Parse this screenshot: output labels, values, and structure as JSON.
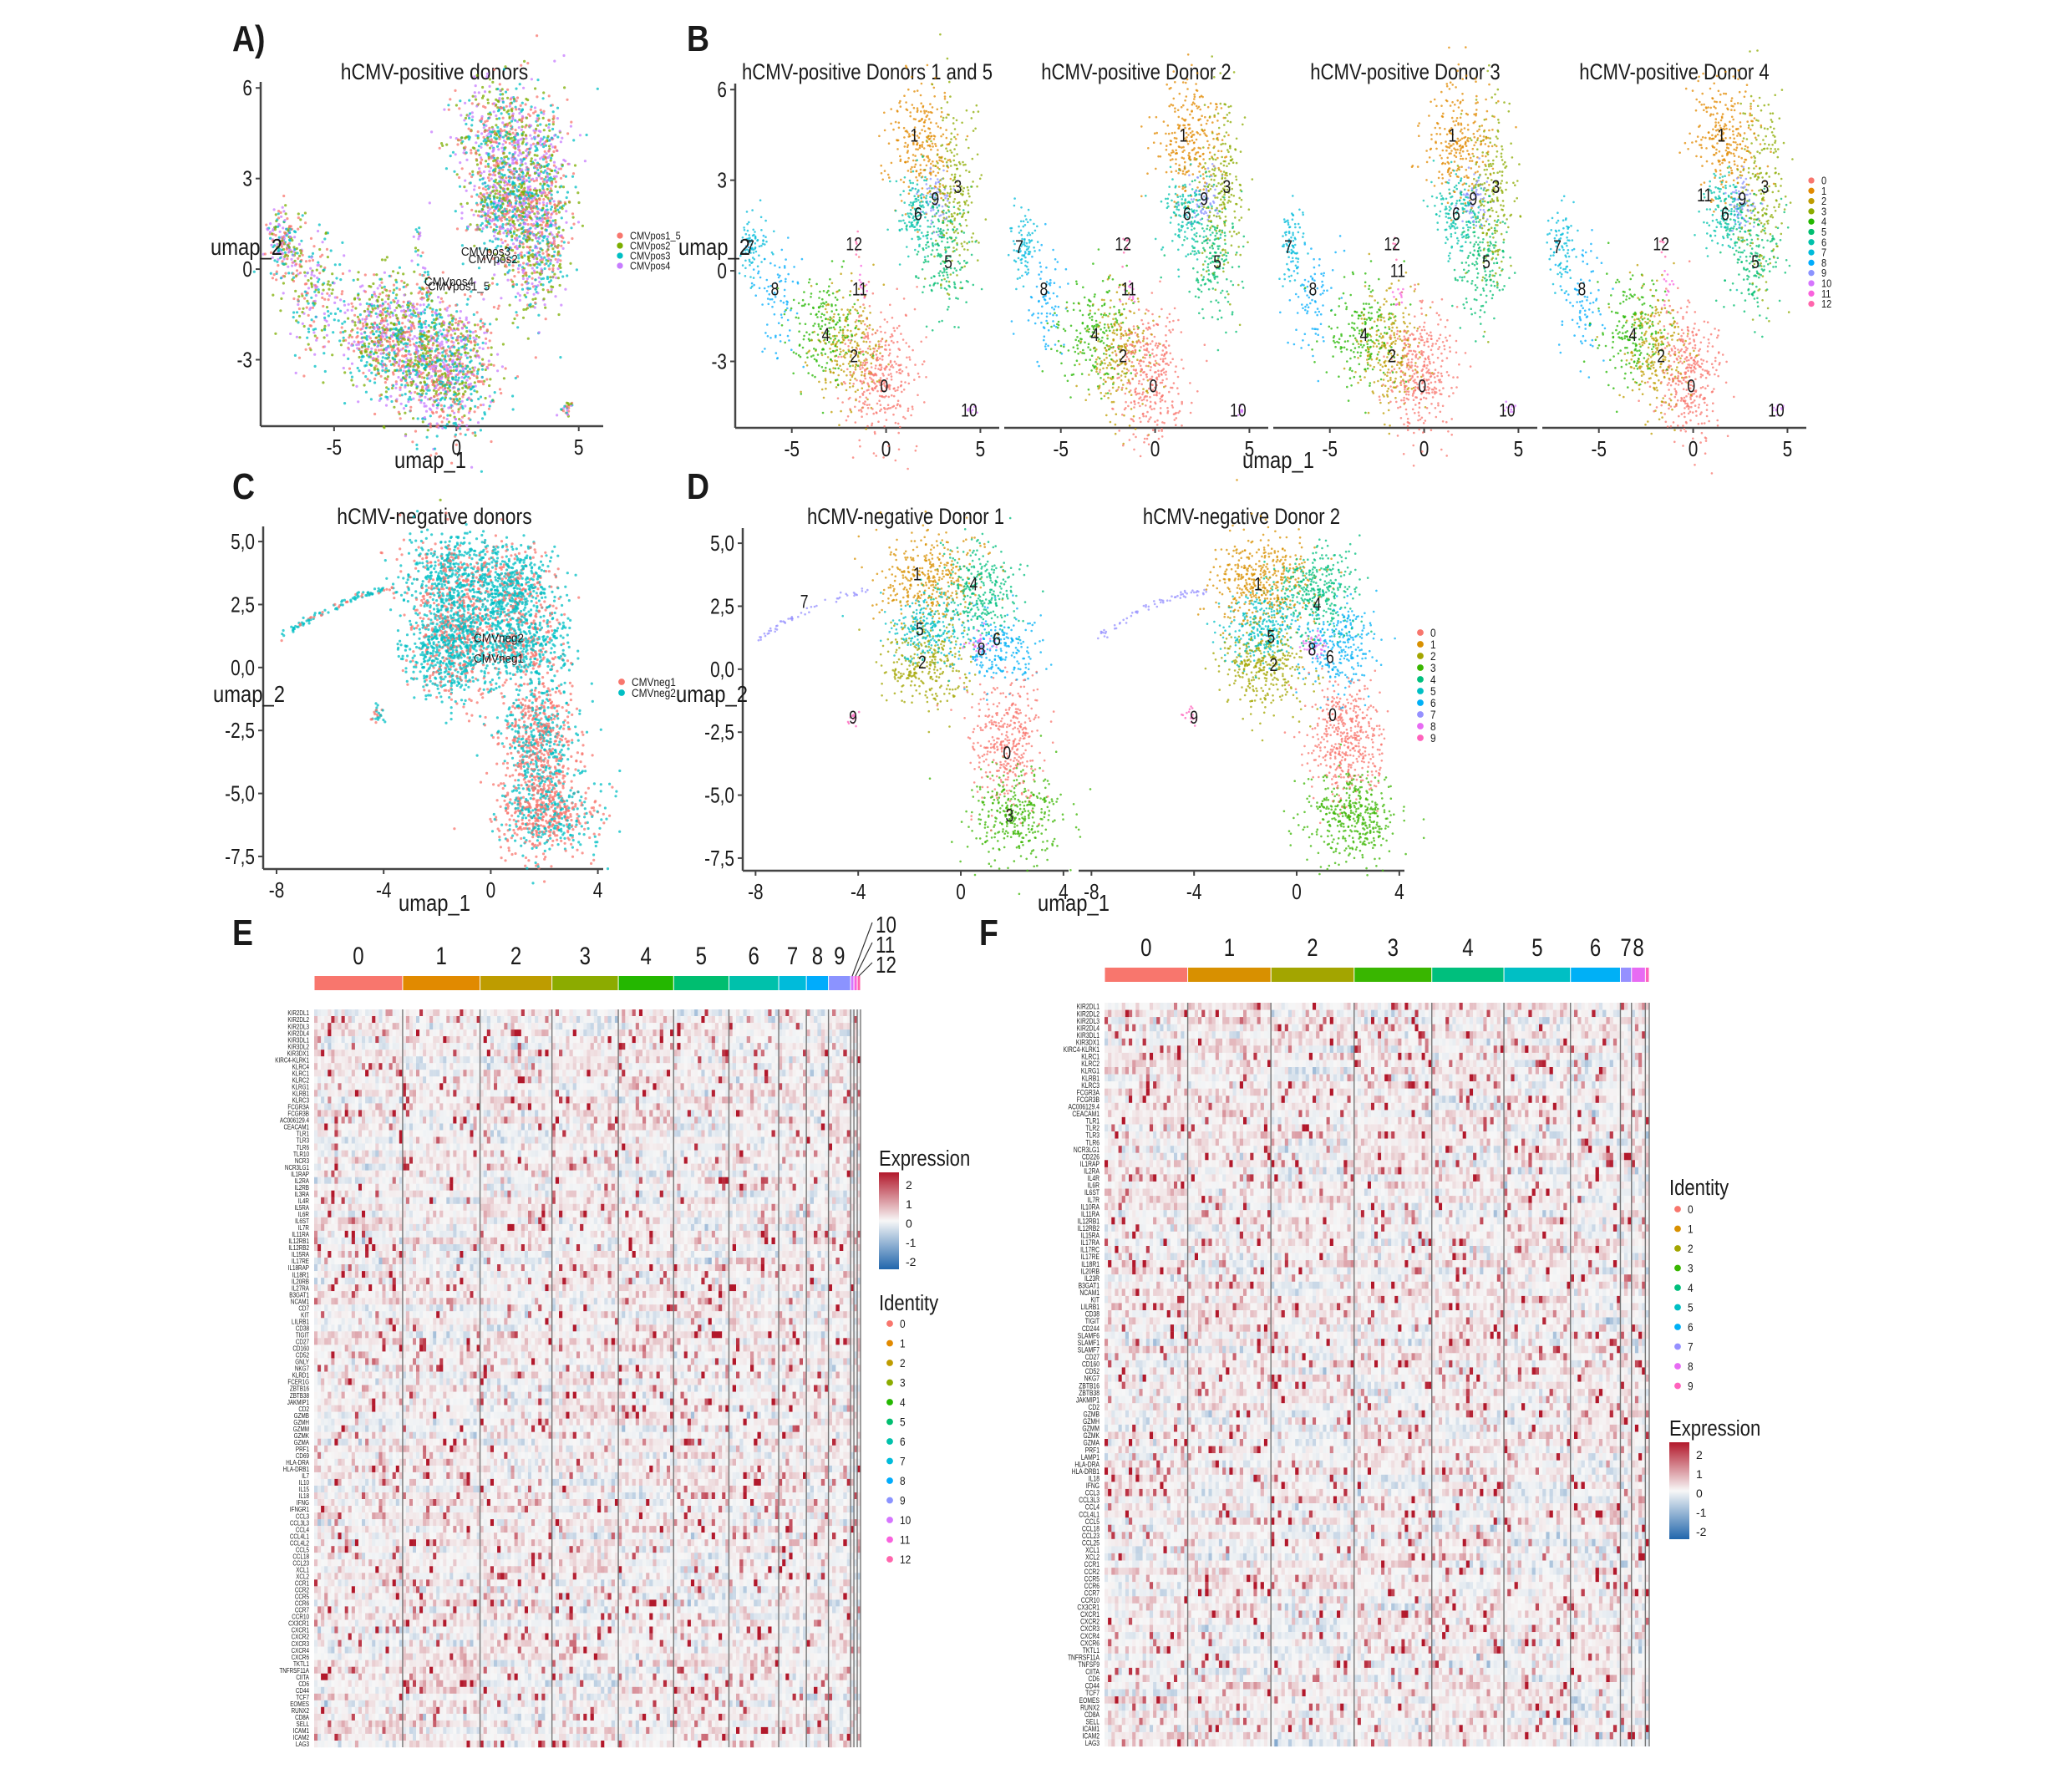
{
  "figure": {
    "panel_letters": [
      "A)",
      "B",
      "C",
      "D",
      "E",
      "F"
    ]
  },
  "palettes": {
    "clusters13": [
      "#F8766D",
      "#E18A00",
      "#BE9C00",
      "#8CAB00",
      "#24B700",
      "#00BE70",
      "#00C1AB",
      "#00BBDA",
      "#00ACFC",
      "#8B93FF",
      "#D575FE",
      "#F962DD",
      "#FF65AC"
    ],
    "clusters10": [
      "#F8766D",
      "#D89000",
      "#A3A500",
      "#39B600",
      "#00BF7D",
      "#00BFC4",
      "#00B0F6",
      "#9590FF",
      "#E76BF3",
      "#FF62BC"
    ],
    "donors_pos": [
      "#F8766D",
      "#7CAE00",
      "#00BFC4",
      "#C77CFF"
    ],
    "donors_neg": [
      "#F8766D",
      "#00BFC4"
    ],
    "heat": {
      "low": "#2166AC",
      "mid": "#F7F7F7",
      "high": "#B2182B"
    }
  },
  "chart_data": [
    {
      "id": "A",
      "type": "scatter",
      "title": "hCMV-positive donors",
      "xlabel": "umap_1",
      "ylabel": "umap_2",
      "xlim": [
        -8,
        6
      ],
      "ylim": [
        -5.2,
        6.2
      ],
      "xticks": [
        -5,
        0,
        5
      ],
      "yticks": [
        -3,
        0,
        3,
        6
      ],
      "tick_labels_x": [
        "-5",
        "0",
        "5"
      ],
      "tick_labels_y": [
        "-3",
        "0",
        "3",
        "6"
      ],
      "legend": {
        "placement": "right",
        "entries": [
          "CMVpos1_5",
          "CMVpos2",
          "CMVpos3",
          "CMVpos4"
        ]
      },
      "annotations": [
        {
          "text": "CMVpos3",
          "x": 1.2,
          "y": 0.45
        },
        {
          "text": "CMVpos2",
          "x": 1.5,
          "y": 0.2
        },
        {
          "text": "CMVpos4",
          "x": -0.3,
          "y": -0.55
        },
        {
          "text": "CMVpos1_5",
          "x": 0.1,
          "y": -0.7
        }
      ]
    },
    {
      "id": "B",
      "type": "scatter",
      "facets": [
        "hCMV-positive Donors 1 and 5",
        "hCMV-positive Donor 2",
        "hCMV-positive Donor 3",
        "hCMV-positive Donor 4"
      ],
      "xlabel": "umap_1",
      "ylabel": "umap_2",
      "xlim": [
        -8,
        6
      ],
      "ylim": [
        -5.2,
        6.2
      ],
      "xticks": [
        -5,
        0,
        5
      ],
      "yticks": [
        -3,
        0,
        3,
        6
      ],
      "tick_labels_x": [
        "-5",
        "0",
        "5"
      ],
      "tick_labels_y": [
        "-3",
        "0",
        "3",
        "6"
      ],
      "legend": {
        "placement": "right",
        "entries": [
          "0",
          "1",
          "2",
          "3",
          "4",
          "5",
          "6",
          "7",
          "8",
          "9",
          "10",
          "11",
          "12"
        ]
      },
      "cluster_labels": [
        {
          "text": "0",
          "x": -0.1,
          "y": -3.8
        },
        {
          "text": "1",
          "x": 1.5,
          "y": 4.5
        },
        {
          "text": "2",
          "x": -1.7,
          "y": -2.8
        },
        {
          "text": "3",
          "x": 3.8,
          "y": 2.8
        },
        {
          "text": "4",
          "x": -3.2,
          "y": -2.1
        },
        {
          "text": "5",
          "x": 3.3,
          "y": 0.3
        },
        {
          "text": "6",
          "x": 1.7,
          "y": 1.9
        },
        {
          "text": "7",
          "x": -7.2,
          "y": 0.8
        },
        {
          "text": "8",
          "x": -5.9,
          "y": -0.6
        },
        {
          "text": "9",
          "x": 2.6,
          "y": 2.4
        },
        {
          "text": "10",
          "x": 4.4,
          "y": -4.6
        },
        {
          "text": "11",
          "x": -1.4,
          "y": -0.6
        },
        {
          "text": "12",
          "x": -1.7,
          "y": 0.9
        }
      ]
    },
    {
      "id": "C",
      "type": "scatter",
      "title": "hCMV-negative donors",
      "xlabel": "umap_1",
      "ylabel": "umap_2",
      "xlim": [
        -8.5,
        4.2
      ],
      "ylim": [
        -8,
        5.6
      ],
      "xticks": [
        -8,
        -4,
        0,
        4
      ],
      "yticks": [
        5,
        2.5,
        0,
        -2.5,
        -5,
        -7.5
      ],
      "tick_labels_x": [
        "-8",
        "-4",
        "0",
        "4"
      ],
      "tick_labels_y": [
        "5,0",
        "2,5",
        "0,0",
        "-2,5",
        "-5,0",
        "-7,5"
      ],
      "legend": {
        "placement": "right",
        "entries": [
          "CMVneg1",
          "CMVneg2"
        ]
      },
      "annotations": [
        {
          "text": "CMVneg2",
          "x": 0.3,
          "y": 1.0
        },
        {
          "text": "CMVneg1",
          "x": 0.3,
          "y": 0.2
        }
      ]
    },
    {
      "id": "D",
      "type": "scatter",
      "facets": [
        "hCMV-negative Donor 1",
        "hCMV-negative Donor 2"
      ],
      "xlabel": "umap_1",
      "ylabel": "umap_2",
      "xlim": [
        -8.5,
        4.2
      ],
      "ylim": [
        -8,
        5.6
      ],
      "xticks": [
        -8,
        -4,
        0,
        4
      ],
      "yticks": [
        5,
        2.5,
        0,
        -2.5,
        -5,
        -7.5
      ],
      "tick_labels_x": [
        "-8",
        "-4",
        "0",
        "4"
      ],
      "tick_labels_y": [
        "5,0",
        "2,5",
        "0,0",
        "-2,5",
        "-5,0",
        "-7,5"
      ],
      "legend": {
        "placement": "right",
        "entries": [
          "0",
          "1",
          "2",
          "3",
          "4",
          "5",
          "6",
          "7",
          "8",
          "9"
        ]
      },
      "cluster_labels_facet1": [
        {
          "text": "0",
          "x": 1.8,
          "y": -3.3
        },
        {
          "text": "1",
          "x": -1.7,
          "y": 3.8
        },
        {
          "text": "2",
          "x": -1.5,
          "y": 0.3
        },
        {
          "text": "3",
          "x": 1.9,
          "y": -5.8
        },
        {
          "text": "4",
          "x": 0.5,
          "y": 3.4
        },
        {
          "text": "5",
          "x": -1.6,
          "y": 1.6
        },
        {
          "text": "6",
          "x": 1.4,
          "y": 1.2
        },
        {
          "text": "7",
          "x": -6.1,
          "y": 2.7
        },
        {
          "text": "8",
          "x": 0.8,
          "y": 0.8
        },
        {
          "text": "9",
          "x": -4.2,
          "y": -1.9
        }
      ],
      "cluster_labels_facet2": [
        {
          "text": "0",
          "x": 1.4,
          "y": -1.8
        },
        {
          "text": "1",
          "x": -1.5,
          "y": 3.4
        },
        {
          "text": "2",
          "x": -0.9,
          "y": 0.2
        },
        {
          "text": "4",
          "x": 0.8,
          "y": 2.6
        },
        {
          "text": "5",
          "x": -1.0,
          "y": 1.3
        },
        {
          "text": "6",
          "x": 1.3,
          "y": 0.5
        },
        {
          "text": "8",
          "x": 0.6,
          "y": 0.8
        },
        {
          "text": "9",
          "x": -4.0,
          "y": -1.9
        }
      ]
    },
    {
      "id": "E",
      "type": "heatmap",
      "legend_expression": {
        "title": "Expression",
        "ticks": [
          "2",
          "1",
          "0",
          "-1",
          "-2"
        ],
        "range": [
          -2.5,
          2.5
        ]
      },
      "legend_identity": {
        "title": "Identity",
        "entries": [
          "0",
          "1",
          "2",
          "3",
          "4",
          "5",
          "6",
          "7",
          "8",
          "9",
          "10",
          "11",
          "12"
        ]
      },
      "clusters": [
        "0",
        "1",
        "2",
        "3",
        "4",
        "5",
        "6",
        "7",
        "8",
        "9",
        "10",
        "11",
        "12"
      ],
      "cluster_sizes": [
        16,
        14,
        13,
        12,
        10,
        10,
        9,
        5,
        4,
        4,
        0.6,
        0.6,
        0.6
      ],
      "genes": [
        "KIR2DL1",
        "KIR2DL2",
        "KIR2DL3",
        "KIR2DL4",
        "KIR3DL1",
        "KIR3DL2",
        "KIR3DX1",
        "KIRC4-KLRK1",
        "KLRC4",
        "KLRC1",
        "KLRC2",
        "KLRG1",
        "KLRB1",
        "KLRC3",
        "FCGR3A",
        "FCGR3B",
        "AC006129.4",
        "CEACAM1",
        "TLR1",
        "TLR3",
        "TLR6",
        "TLR10",
        "NCR3",
        "NCR3LG1",
        "IL1RAP",
        "IL2RA",
        "IL2RB",
        "IL3RA",
        "IL4R",
        "IL5RA",
        "IL6R",
        "IL6ST",
        "IL7R",
        "IL11RA",
        "IL12RB1",
        "IL12RB2",
        "IL15RA",
        "IL17RE",
        "IL18RAP",
        "IL18R1",
        "IL20RB",
        "IL27RA",
        "B3GAT1",
        "NCAM1",
        "CD7",
        "KIT",
        "LILRB1",
        "CD38",
        "TIGIT",
        "CD27",
        "CD160",
        "CD52",
        "GNLY",
        "NKG7",
        "KLRD1",
        "FCER1G",
        "ZBTB16",
        "ZBTB38",
        "JAKMIP1",
        "CD2",
        "GZMB",
        "GZMH",
        "GZMM",
        "GZMK",
        "GZMA",
        "PRF1",
        "CD69",
        "HLA-DRA",
        "HLA-DRB1",
        "IL7",
        "IL10",
        "IL15",
        "IL18",
        "IFNG",
        "IFNGR1",
        "CCL3",
        "CCL3L3",
        "CCL4",
        "CCL4L1",
        "CCL4L2",
        "CCL5",
        "CCL18",
        "CCL23",
        "XCL1",
        "XCL2",
        "CCR1",
        "CCR2",
        "CCR5",
        "CCR6",
        "CCR7",
        "CCR10",
        "CX3CR1",
        "CXCR1",
        "CXCR2",
        "CXCR3",
        "CXCR4",
        "CXCR6",
        "TKTL1",
        "TNFRSF11A",
        "CIITA",
        "CD6",
        "CD44",
        "TCF7",
        "EOMES",
        "RUNX2",
        "CD8A",
        "SELL",
        "ICAM1",
        "ICAM2",
        "LAG3"
      ]
    },
    {
      "id": "F",
      "type": "heatmap",
      "legend_expression": {
        "title": "Expression",
        "ticks": [
          "2",
          "1",
          "0",
          "-1",
          "-2"
        ],
        "range": [
          -2.5,
          2.5
        ]
      },
      "legend_identity": {
        "title": "Identity",
        "entries": [
          "0",
          "1",
          "2",
          "3",
          "4",
          "5",
          "6",
          "7",
          "8",
          "9"
        ]
      },
      "clusters": [
        "0",
        "1",
        "2",
        "3",
        "4",
        "5",
        "6",
        "7",
        "8",
        "9"
      ],
      "cluster_sizes": [
        15,
        15,
        15,
        14,
        13,
        12,
        9,
        2,
        2.5,
        0.7
      ],
      "genes": [
        "KIR2DL1",
        "KIR2DL2",
        "KIR2DL3",
        "KIR2DL4",
        "KIR3DL1",
        "KIR3DX1",
        "KIRC4-KLRK1",
        "KLRC1",
        "KLRC2",
        "KLRG1",
        "KLRB1",
        "KLRC3",
        "FCGR3A",
        "FCGR3B",
        "AC006129.4",
        "CEACAM1",
        "TLR1",
        "TLR2",
        "TLR3",
        "TLR6",
        "NCR3LG1",
        "CD226",
        "IL1RAP",
        "IL2RA",
        "IL4R",
        "IL6R",
        "IL6ST",
        "IL7R",
        "IL10RA",
        "IL11RA",
        "IL12RB1",
        "IL12RB2",
        "IL15RA",
        "IL17RA",
        "IL17RC",
        "IL17RE",
        "IL18R1",
        "IL20RB",
        "IL23R",
        "B3GAT1",
        "NCAM1",
        "KIT",
        "LILRB1",
        "CD38",
        "TIGIT",
        "CD244",
        "SLAMF6",
        "SLAMF1",
        "SLAMF7",
        "CD27",
        "CD160",
        "CD52",
        "NKG7",
        "ZBTB16",
        "ZBTB38",
        "JAKMIP1",
        "CD2",
        "GZMB",
        "GZMH",
        "GZMM",
        "GZMK",
        "GZMA",
        "PRF1",
        "LAMP1",
        "HLA-DRA",
        "HLA-DRB1",
        "IL18",
        "IFNG",
        "CCL3",
        "CCL3L3",
        "CCL4",
        "CCL4L1",
        "CCL5",
        "CCL18",
        "CCL23",
        "CCL25",
        "XCL1",
        "XCL2",
        "CCR1",
        "CCR2",
        "CCR5",
        "CCR6",
        "CCR7",
        "CCR10",
        "CX3CR1",
        "CXCR1",
        "CXCR2",
        "CXCR3",
        "CXCR4",
        "CXCR6",
        "TKTL1",
        "TNFRSF11A",
        "TNFSF9",
        "CIITA",
        "CD6",
        "CD44",
        "TCF7",
        "EOMES",
        "RUNX2",
        "CD8A",
        "SELL",
        "ICAM1",
        "ICAM2",
        "LAG3"
      ]
    }
  ]
}
